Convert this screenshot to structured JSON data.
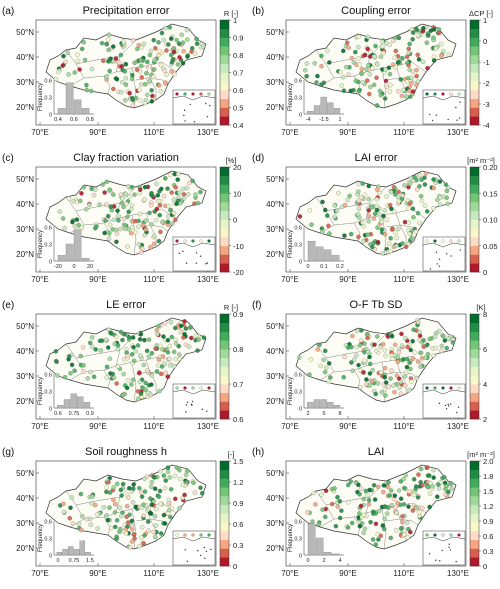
{
  "colors": {
    "levels": [
      "#b2182b",
      "#d6604d",
      "#f4a582",
      "#fddbc7",
      "#f7f7c7",
      "#e6f5c9",
      "#c7e9c0",
      "#a1d99b",
      "#74c476",
      "#41ab5d",
      "#238b45",
      "#006d2c"
    ],
    "china_fill": "#fdfdf5",
    "hist_bar": "#b8b8b8"
  },
  "axes": {
    "lat_ticks": [
      "50°N",
      "40°N",
      "30°N",
      "20°N"
    ],
    "lon_ticks": [
      "70°E",
      "90°E",
      "110°E",
      "130°E"
    ]
  },
  "panels": [
    {
      "id": "a",
      "letter": "(a)",
      "title": "Precipitation error",
      "title_html": "",
      "cbar_label": "R [-]",
      "cbar_ticks": [
        "1",
        "0.9",
        "0.8",
        "0.7",
        "0.6",
        "0.5",
        "0.4"
      ],
      "hist_ylabel": "Frequency",
      "hist_yticks": [
        "0.6",
        "0.3",
        "0"
      ],
      "hist_xticks": [
        "0.4",
        "0.6",
        "0.8"
      ],
      "hist_values": [
        0.1,
        0.55,
        0.25,
        0.1
      ]
    },
    {
      "id": "b",
      "letter": "(b)",
      "title": "Coupling error",
      "cbar_label": "ΔCP [-]",
      "cbar_ticks": [
        "1",
        "0",
        "-1",
        "-2",
        "-3",
        "-4"
      ],
      "hist_ylabel": "Frequency",
      "hist_yticks": [
        "0.6",
        "0.3",
        "0"
      ],
      "hist_xticks": [
        "-4",
        "-1.5",
        "1"
      ],
      "hist_values": [
        0.05,
        0.15,
        0.3,
        0.2,
        0.1
      ]
    },
    {
      "id": "c",
      "letter": "(c)",
      "title": "Clay fraction variation",
      "cbar_label": "[%]",
      "cbar_ticks": [
        "20",
        "10",
        "0",
        "-10",
        "-20"
      ],
      "hist_ylabel": "Frequency",
      "hist_yticks": [
        "0.6",
        "0.3",
        "0"
      ],
      "hist_xticks": [
        "-20",
        "0",
        "20"
      ],
      "hist_values": [
        0.1,
        0.3,
        0.55,
        0.05
      ]
    },
    {
      "id": "d",
      "letter": "(d)",
      "title": "LAI error",
      "cbar_label": "[m² m⁻²]",
      "cbar_ticks": [
        "0.20",
        "0.15",
        "0.10",
        "0.05",
        "0"
      ],
      "hist_ylabel": "Frequency",
      "hist_yticks": [
        "0.6",
        "0.3",
        "0"
      ],
      "hist_xticks": [
        "0",
        "0.1",
        "0.2"
      ],
      "hist_values": [
        0.35,
        0.25,
        0.2,
        0.1
      ]
    },
    {
      "id": "e",
      "letter": "(e)",
      "title": "LE error",
      "cbar_label": "R [-]",
      "cbar_ticks": [
        "0.9",
        "0.8",
        "0.7",
        "0.6"
      ],
      "hist_ylabel": "Frequency",
      "hist_yticks": [
        "0.6",
        "0.3",
        "0"
      ],
      "hist_xticks": [
        "0.6",
        "0.75",
        "0.9"
      ],
      "hist_values": [
        0.05,
        0.15,
        0.25,
        0.2,
        0.1
      ]
    },
    {
      "id": "f",
      "letter": "(f)",
      "title": "O-F Tb SD",
      "cbar_label": "[K]",
      "cbar_ticks": [
        "8",
        "6",
        "4",
        "2"
      ],
      "hist_ylabel": "Frequency",
      "hist_yticks": [
        "0.6",
        "0.3",
        "0"
      ],
      "hist_xticks": [
        "2",
        "5",
        "8"
      ],
      "hist_values": [
        0.1,
        0.15,
        0.15,
        0.1,
        0.05
      ]
    },
    {
      "id": "g",
      "letter": "(g)",
      "title": "Soil roughness h",
      "cbar_label": "[-]",
      "cbar_ticks": [
        "1.5",
        "1.2",
        "0.9",
        "0.6",
        "0.3",
        "0"
      ],
      "hist_ylabel": "Frequency",
      "hist_yticks": [
        "0.6",
        "0.3",
        "0"
      ],
      "hist_xticks": [
        "0",
        "0.75",
        "1.5"
      ],
      "hist_values": [
        0.05,
        0.1,
        0.15,
        0.1,
        0.25,
        0.05
      ]
    },
    {
      "id": "h",
      "letter": "(h)",
      "title": "LAI",
      "cbar_label": "[m² m⁻²]",
      "cbar_ticks": [
        "2.0",
        "1.8",
        "1.5",
        "1.2",
        "0.9",
        "0.6",
        "0.3",
        "0"
      ],
      "hist_ylabel": "Frequency",
      "hist_yticks": [
        "0.6",
        "0.3",
        "0"
      ],
      "hist_xticks": [
        "0",
        "2",
        "4"
      ],
      "hist_values": [
        0.55,
        0.3,
        0.05,
        0.02
      ]
    }
  ]
}
